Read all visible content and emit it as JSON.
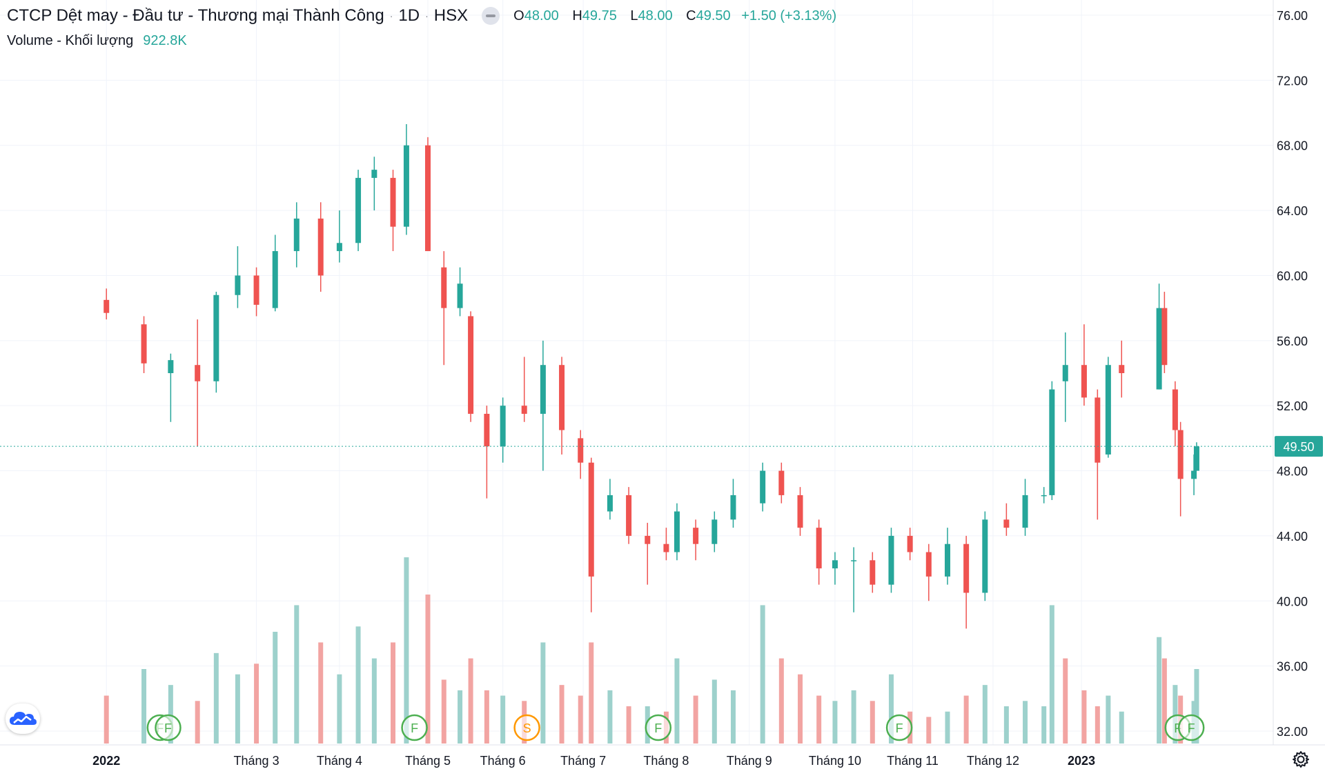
{
  "header": {
    "symbol_title": "CTCP Dệt may - Đầu tư - Thương mại Thành Công",
    "interval": "1D",
    "exchange": "HSX",
    "ohlc": {
      "o_label": "O",
      "o": "48.00",
      "h_label": "H",
      "h": "49.75",
      "l_label": "L",
      "l": "48.00",
      "c_label": "C",
      "c": "49.50",
      "change": "+1.50 (+3.13%)"
    },
    "volume_label": "Volume - Khối lượng",
    "volume_value": "922.8K"
  },
  "price_tag": "49.50",
  "colors": {
    "up": "#26a69a",
    "down": "#ef5350",
    "up_volume": "#9dd1cc",
    "down_volume": "#f2a4a2",
    "grid": "#f0f3fa",
    "axis_text": "#131722",
    "event_green": "#4caf50",
    "event_orange": "#ff9800"
  },
  "icons": {
    "logo": "tradingview-cloud-icon",
    "settings": "gear-icon"
  },
  "chart_data": {
    "type": "candlestick",
    "title": "",
    "xlabel": "",
    "ylabel": "",
    "ylim": [
      31,
      76
    ],
    "y_ticks": [
      32,
      36,
      40,
      44,
      48,
      52,
      56,
      60,
      64,
      68,
      72,
      76
    ],
    "y_tick_labels": [
      "32.00",
      "36.00",
      "40.00",
      "44.00",
      "48.00",
      "52.00",
      "56.00",
      "60.00",
      "64.00",
      "68.00",
      "72.00",
      "76.00"
    ],
    "x_labels": [
      "2022",
      "Tháng 3",
      "Tháng 4",
      "Tháng 5",
      "Tháng 6",
      "Tháng 7",
      "Tháng 8",
      "Tháng 9",
      "Tháng 10",
      "Tháng 11",
      "Tháng 12",
      "2023"
    ],
    "x_label_dates": [
      "2022-01-04",
      "2022-03-01",
      "2022-04-01",
      "2022-05-04",
      "2022-06-01",
      "2022-07-01",
      "2022-08-01",
      "2022-09-01",
      "2022-10-03",
      "2022-11-01",
      "2022-12-01",
      "2023-01-03"
    ],
    "grid": true,
    "last_close": 49.5,
    "ohlc_points": [
      {
        "date": "2022-01-04",
        "o": 58.5,
        "h": 59.2,
        "l": 57.3,
        "c": 57.7
      },
      {
        "date": "2022-01-18",
        "o": 57.0,
        "h": 57.5,
        "l": 54.0,
        "c": 54.6
      },
      {
        "date": "2022-01-28",
        "o": 54.0,
        "h": 55.2,
        "l": 51.0,
        "c": 54.8
      },
      {
        "date": "2022-02-07",
        "o": 54.5,
        "h": 57.3,
        "l": 49.5,
        "c": 53.5
      },
      {
        "date": "2022-02-14",
        "o": 53.5,
        "h": 59.0,
        "l": 52.8,
        "c": 58.8
      },
      {
        "date": "2022-02-22",
        "o": 58.8,
        "h": 61.8,
        "l": 58.0,
        "c": 60.0
      },
      {
        "date": "2022-03-01",
        "o": 60.0,
        "h": 60.5,
        "l": 57.5,
        "c": 58.2
      },
      {
        "date": "2022-03-08",
        "o": 58.0,
        "h": 62.5,
        "l": 57.8,
        "c": 61.5
      },
      {
        "date": "2022-03-16",
        "o": 61.5,
        "h": 64.5,
        "l": 60.5,
        "c": 63.5
      },
      {
        "date": "2022-03-25",
        "o": 63.5,
        "h": 64.5,
        "l": 59.0,
        "c": 60.0
      },
      {
        "date": "2022-04-01",
        "o": 61.5,
        "h": 64.0,
        "l": 60.8,
        "c": 62.0
      },
      {
        "date": "2022-04-08",
        "o": 62.0,
        "h": 66.5,
        "l": 61.5,
        "c": 66.0
      },
      {
        "date": "2022-04-14",
        "o": 66.0,
        "h": 67.3,
        "l": 64.0,
        "c": 66.5
      },
      {
        "date": "2022-04-21",
        "o": 66.0,
        "h": 66.5,
        "l": 61.5,
        "c": 63.0
      },
      {
        "date": "2022-04-26",
        "o": 63.0,
        "h": 69.3,
        "l": 62.5,
        "c": 68.0
      },
      {
        "date": "2022-05-04",
        "o": 68.0,
        "h": 68.5,
        "l": 63.0,
        "c": 61.5
      },
      {
        "date": "2022-05-10",
        "o": 60.5,
        "h": 61.5,
        "l": 54.5,
        "c": 58.0
      },
      {
        "date": "2022-05-16",
        "o": 58.0,
        "h": 60.5,
        "l": 57.5,
        "c": 59.5
      },
      {
        "date": "2022-05-20",
        "o": 57.5,
        "h": 57.8,
        "l": 51.0,
        "c": 51.5
      },
      {
        "date": "2022-05-26",
        "o": 51.5,
        "h": 52.0,
        "l": 46.3,
        "c": 49.5
      },
      {
        "date": "2022-06-01",
        "o": 49.5,
        "h": 52.5,
        "l": 48.5,
        "c": 52.0
      },
      {
        "date": "2022-06-09",
        "o": 52.0,
        "h": 55.0,
        "l": 51.0,
        "c": 51.5
      },
      {
        "date": "2022-06-16",
        "o": 51.5,
        "h": 56.0,
        "l": 48.0,
        "c": 54.5
      },
      {
        "date": "2022-06-23",
        "o": 54.5,
        "h": 55.0,
        "l": 49.0,
        "c": 50.5
      },
      {
        "date": "2022-06-30",
        "o": 50.0,
        "h": 50.5,
        "l": 47.5,
        "c": 48.5
      },
      {
        "date": "2022-07-04",
        "o": 48.5,
        "h": 48.8,
        "l": 39.3,
        "c": 41.5
      },
      {
        "date": "2022-07-11",
        "o": 45.5,
        "h": 47.5,
        "l": 45.0,
        "c": 46.5
      },
      {
        "date": "2022-07-18",
        "o": 46.5,
        "h": 47.0,
        "l": 43.5,
        "c": 44.0
      },
      {
        "date": "2022-07-25",
        "o": 44.0,
        "h": 44.8,
        "l": 41.0,
        "c": 43.5
      },
      {
        "date": "2022-08-01",
        "o": 43.5,
        "h": 44.5,
        "l": 42.5,
        "c": 43.0
      },
      {
        "date": "2022-08-05",
        "o": 43.0,
        "h": 46.0,
        "l": 42.5,
        "c": 45.5
      },
      {
        "date": "2022-08-12",
        "o": 44.5,
        "h": 45.0,
        "l": 42.5,
        "c": 43.5
      },
      {
        "date": "2022-08-19",
        "o": 43.5,
        "h": 45.5,
        "l": 43.0,
        "c": 45.0
      },
      {
        "date": "2022-08-26",
        "o": 45.0,
        "h": 47.5,
        "l": 44.5,
        "c": 46.5
      },
      {
        "date": "2022-09-06",
        "o": 46.0,
        "h": 48.5,
        "l": 45.5,
        "c": 48.0
      },
      {
        "date": "2022-09-13",
        "o": 48.0,
        "h": 48.5,
        "l": 46.0,
        "c": 46.5
      },
      {
        "date": "2022-09-20",
        "o": 46.5,
        "h": 47.0,
        "l": 44.0,
        "c": 44.5
      },
      {
        "date": "2022-09-27",
        "o": 44.5,
        "h": 45.0,
        "l": 41.0,
        "c": 42.0
      },
      {
        "date": "2022-10-03",
        "o": 42.0,
        "h": 43.0,
        "l": 41.0,
        "c": 42.5
      },
      {
        "date": "2022-10-10",
        "o": 42.5,
        "h": 43.3,
        "l": 39.3,
        "c": 42.5
      },
      {
        "date": "2022-10-17",
        "o": 42.5,
        "h": 43.0,
        "l": 40.5,
        "c": 41.0
      },
      {
        "date": "2022-10-24",
        "o": 41.0,
        "h": 44.5,
        "l": 40.5,
        "c": 44.0
      },
      {
        "date": "2022-10-31",
        "o": 44.0,
        "h": 44.5,
        "l": 42.5,
        "c": 43.0
      },
      {
        "date": "2022-11-07",
        "o": 43.0,
        "h": 43.5,
        "l": 40.0,
        "c": 41.5
      },
      {
        "date": "2022-11-14",
        "o": 41.5,
        "h": 44.5,
        "l": 41.0,
        "c": 43.5
      },
      {
        "date": "2022-11-21",
        "o": 43.5,
        "h": 44.0,
        "l": 38.3,
        "c": 40.5
      },
      {
        "date": "2022-11-28",
        "o": 40.5,
        "h": 45.5,
        "l": 40.0,
        "c": 45.0
      },
      {
        "date": "2022-12-06",
        "o": 45.0,
        "h": 46.0,
        "l": 44.0,
        "c": 44.5
      },
      {
        "date": "2022-12-13",
        "o": 44.5,
        "h": 47.5,
        "l": 44.0,
        "c": 46.5
      },
      {
        "date": "2022-12-20",
        "o": 46.5,
        "h": 47.0,
        "l": 46.0,
        "c": 46.5
      },
      {
        "date": "2022-12-23",
        "o": 46.5,
        "h": 53.5,
        "l": 46.2,
        "c": 53.0
      },
      {
        "date": "2022-12-28",
        "o": 53.5,
        "h": 56.5,
        "l": 51.0,
        "c": 54.5
      },
      {
        "date": "2023-01-04",
        "o": 54.5,
        "h": 57.0,
        "l": 52.0,
        "c": 52.5
      },
      {
        "date": "2023-01-09",
        "o": 52.5,
        "h": 53.0,
        "l": 45.0,
        "c": 48.5
      },
      {
        "date": "2023-01-13",
        "o": 49.0,
        "h": 55.0,
        "l": 48.8,
        "c": 54.5
      },
      {
        "date": "2023-01-18",
        "o": 54.5,
        "h": 56.0,
        "l": 52.5,
        "c": 54.0
      },
      {
        "date": "2023-02-01",
        "o": 53.0,
        "h": 59.5,
        "l": 53.0,
        "c": 58.0
      },
      {
        "date": "2023-02-03",
        "o": 58.0,
        "h": 59.0,
        "l": 54.0,
        "c": 54.5
      },
      {
        "date": "2023-02-07",
        "o": 53.0,
        "h": 53.5,
        "l": 49.5,
        "c": 50.5
      },
      {
        "date": "2023-02-09",
        "o": 50.5,
        "h": 51.0,
        "l": 45.2,
        "c": 47.5
      },
      {
        "date": "2023-02-14",
        "o": 47.5,
        "h": 49.0,
        "l": 46.5,
        "c": 48.0
      },
      {
        "date": "2023-02-15",
        "o": 48.0,
        "h": 49.75,
        "l": 48.0,
        "c": 49.5
      }
    ],
    "volume_points": [
      {
        "date": "2022-01-04",
        "v": 0.9,
        "dir": "down"
      },
      {
        "date": "2022-01-18",
        "v": 1.4,
        "dir": "up"
      },
      {
        "date": "2022-01-28",
        "v": 1.1,
        "dir": "up"
      },
      {
        "date": "2022-02-07",
        "v": 0.8,
        "dir": "down"
      },
      {
        "date": "2022-02-14",
        "v": 1.7,
        "dir": "up"
      },
      {
        "date": "2022-02-22",
        "v": 1.3,
        "dir": "up"
      },
      {
        "date": "2022-03-01",
        "v": 1.5,
        "dir": "down"
      },
      {
        "date": "2022-03-08",
        "v": 2.1,
        "dir": "up"
      },
      {
        "date": "2022-03-16",
        "v": 2.6,
        "dir": "up"
      },
      {
        "date": "2022-03-25",
        "v": 1.9,
        "dir": "down"
      },
      {
        "date": "2022-04-01",
        "v": 1.3,
        "dir": "up"
      },
      {
        "date": "2022-04-08",
        "v": 2.2,
        "dir": "up"
      },
      {
        "date": "2022-04-14",
        "v": 1.6,
        "dir": "up"
      },
      {
        "date": "2022-04-21",
        "v": 1.9,
        "dir": "down"
      },
      {
        "date": "2022-04-26",
        "v": 3.5,
        "dir": "up"
      },
      {
        "date": "2022-05-04",
        "v": 2.8,
        "dir": "down"
      },
      {
        "date": "2022-05-10",
        "v": 1.2,
        "dir": "down"
      },
      {
        "date": "2022-05-16",
        "v": 1.0,
        "dir": "up"
      },
      {
        "date": "2022-05-20",
        "v": 1.6,
        "dir": "down"
      },
      {
        "date": "2022-05-26",
        "v": 1.0,
        "dir": "down"
      },
      {
        "date": "2022-06-01",
        "v": 0.9,
        "dir": "up"
      },
      {
        "date": "2022-06-09",
        "v": 0.8,
        "dir": "down"
      },
      {
        "date": "2022-06-16",
        "v": 1.9,
        "dir": "up"
      },
      {
        "date": "2022-06-23",
        "v": 1.1,
        "dir": "down"
      },
      {
        "date": "2022-06-30",
        "v": 0.9,
        "dir": "down"
      },
      {
        "date": "2022-07-04",
        "v": 1.9,
        "dir": "down"
      },
      {
        "date": "2022-07-11",
        "v": 1.0,
        "dir": "up"
      },
      {
        "date": "2022-07-18",
        "v": 0.7,
        "dir": "down"
      },
      {
        "date": "2022-07-25",
        "v": 0.7,
        "dir": "up"
      },
      {
        "date": "2022-08-01",
        "v": 0.6,
        "dir": "down"
      },
      {
        "date": "2022-08-05",
        "v": 1.6,
        "dir": "up"
      },
      {
        "date": "2022-08-12",
        "v": 0.9,
        "dir": "down"
      },
      {
        "date": "2022-08-19",
        "v": 1.2,
        "dir": "up"
      },
      {
        "date": "2022-08-26",
        "v": 1.0,
        "dir": "up"
      },
      {
        "date": "2022-09-06",
        "v": 2.6,
        "dir": "up"
      },
      {
        "date": "2022-09-13",
        "v": 1.6,
        "dir": "down"
      },
      {
        "date": "2022-09-20",
        "v": 1.3,
        "dir": "down"
      },
      {
        "date": "2022-09-27",
        "v": 0.9,
        "dir": "down"
      },
      {
        "date": "2022-10-03",
        "v": 0.8,
        "dir": "up"
      },
      {
        "date": "2022-10-10",
        "v": 1.0,
        "dir": "up"
      },
      {
        "date": "2022-10-17",
        "v": 0.8,
        "dir": "down"
      },
      {
        "date": "2022-10-24",
        "v": 1.3,
        "dir": "up"
      },
      {
        "date": "2022-10-31",
        "v": 0.6,
        "dir": "down"
      },
      {
        "date": "2022-11-07",
        "v": 0.5,
        "dir": "down"
      },
      {
        "date": "2022-11-14",
        "v": 0.6,
        "dir": "up"
      },
      {
        "date": "2022-11-21",
        "v": 0.9,
        "dir": "down"
      },
      {
        "date": "2022-11-28",
        "v": 1.1,
        "dir": "up"
      },
      {
        "date": "2022-12-06",
        "v": 0.7,
        "dir": "up"
      },
      {
        "date": "2022-12-13",
        "v": 0.8,
        "dir": "up"
      },
      {
        "date": "2022-12-20",
        "v": 0.7,
        "dir": "up"
      },
      {
        "date": "2022-12-23",
        "v": 2.6,
        "dir": "up"
      },
      {
        "date": "2022-12-28",
        "v": 1.6,
        "dir": "down"
      },
      {
        "date": "2023-01-04",
        "v": 1.0,
        "dir": "down"
      },
      {
        "date": "2023-01-09",
        "v": 0.7,
        "dir": "down"
      },
      {
        "date": "2023-01-13",
        "v": 0.9,
        "dir": "up"
      },
      {
        "date": "2023-01-18",
        "v": 0.6,
        "dir": "up"
      },
      {
        "date": "2023-02-01",
        "v": 2.0,
        "dir": "up"
      },
      {
        "date": "2023-02-03",
        "v": 1.6,
        "dir": "down"
      },
      {
        "date": "2023-02-07",
        "v": 1.1,
        "dir": "up"
      },
      {
        "date": "2023-02-09",
        "v": 0.9,
        "dir": "down"
      },
      {
        "date": "2023-02-14",
        "v": 0.8,
        "dir": "up"
      },
      {
        "date": "2023-02-15",
        "v": 1.4,
        "dir": "up"
      }
    ],
    "events": [
      {
        "date": "2022-01-24",
        "label": "F",
        "kind": "green"
      },
      {
        "date": "2022-01-27",
        "label": "F",
        "kind": "green"
      },
      {
        "date": "2022-04-29",
        "label": "F",
        "kind": "green"
      },
      {
        "date": "2022-06-10",
        "label": "S",
        "kind": "orange"
      },
      {
        "date": "2022-07-29",
        "label": "F",
        "kind": "green"
      },
      {
        "date": "2022-10-27",
        "label": "F",
        "kind": "green"
      },
      {
        "date": "2023-02-08",
        "label": "F",
        "kind": "green"
      },
      {
        "date": "2023-02-13",
        "label": "F",
        "kind": "green"
      }
    ]
  }
}
